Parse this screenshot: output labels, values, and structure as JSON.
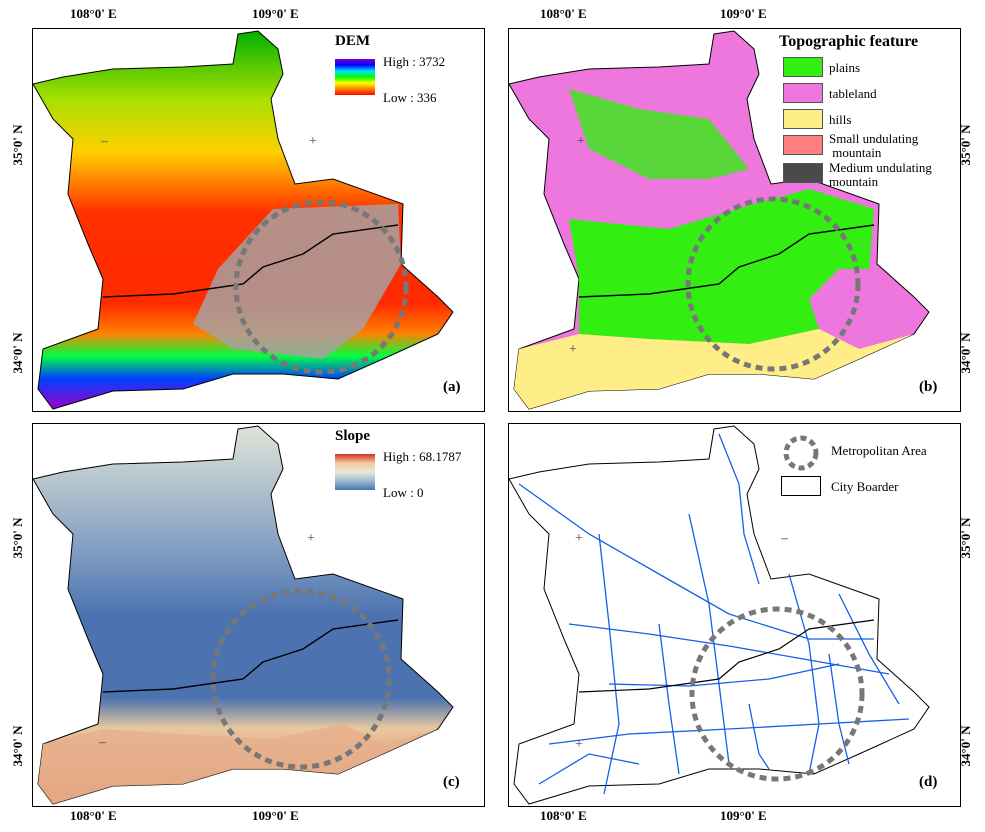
{
  "coords": {
    "top_lon": [
      "108°0' E",
      "109°0' E",
      "108°0' E",
      "109°0' E"
    ],
    "bottom_lon": [
      "108°0' E",
      "109°0' E",
      "108°0' E",
      "109°0' E"
    ],
    "left_lat": [
      "35°0' N",
      "34°0' N",
      "35°0' N",
      "34°0' N"
    ],
    "right_lat": [
      "35°0' N",
      "34°0' N",
      "35°0' N",
      "34°0' N"
    ]
  },
  "panels": {
    "a": {
      "label": "(a)",
      "legend_title": "DEM",
      "high": "High : 3732",
      "low": "Low : 336",
      "ramp_colors": [
        "#7a00c8",
        "#0000ff",
        "#00e0ff",
        "#00ff00",
        "#ffff00",
        "#ff8000",
        "#ff0000"
      ]
    },
    "b": {
      "label": "(b)",
      "legend_title": "Topographic feature",
      "items": [
        {
          "label": "plains",
          "color": "#33ee11"
        },
        {
          "label": "tableland",
          "color": "#ee77dd"
        },
        {
          "label": "hills",
          "color": "#ffee88"
        },
        {
          "label": "Small undulating\n mountain",
          "color": "#ff7f7f"
        },
        {
          "label": "Medium undulating\nmountain",
          "color": "#4a4a4a"
        }
      ]
    },
    "c": {
      "label": "(c)",
      "legend_title": "Slope",
      "high": "High : 68.1787",
      "low": "Low : 0",
      "ramp_colors": [
        "#d62f27",
        "#f5c89a",
        "#e8ecd8",
        "#9db8cf",
        "#4575b4"
      ]
    },
    "d": {
      "label": "(d)",
      "items": [
        {
          "label": "Metropolitan Area"
        },
        {
          "label": "City Boarder"
        }
      ],
      "river_color": "#1560e8"
    }
  }
}
